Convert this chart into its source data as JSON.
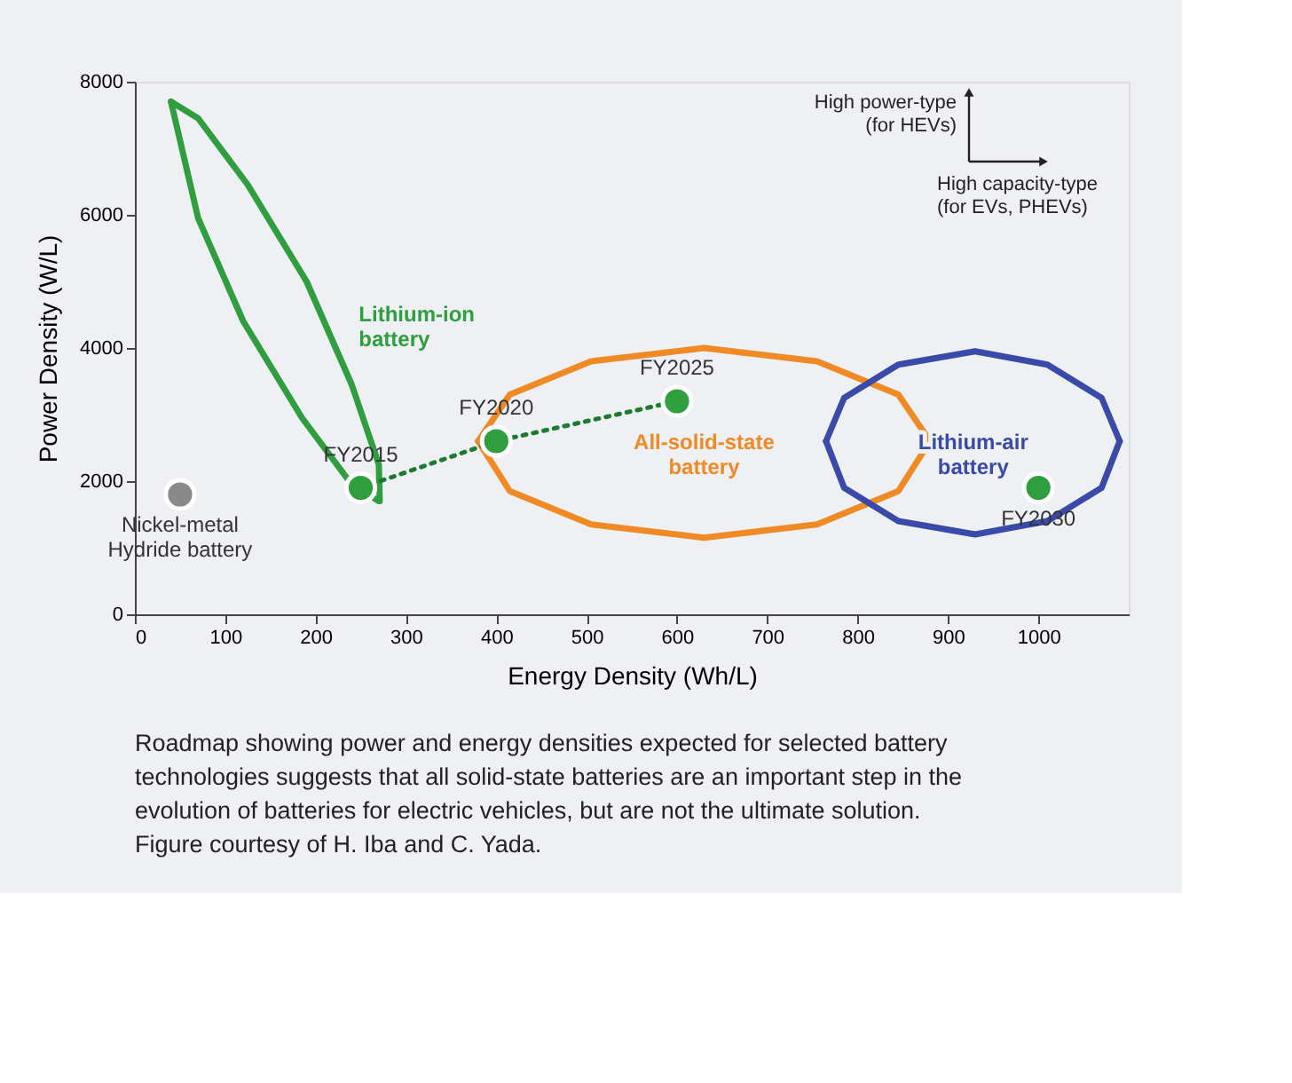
{
  "chart_data": {
    "type": "scatter",
    "xlabel": "Energy Density  (Wh/L)",
    "ylabel": "Power Density  (W/L)",
    "xlim": [
      0,
      1100
    ],
    "ylim": [
      0,
      8000
    ],
    "xticks": [
      0,
      100,
      200,
      300,
      400,
      500,
      600,
      700,
      800,
      900,
      1000
    ],
    "yticks": [
      0,
      2000,
      4000,
      6000,
      8000
    ],
    "grid": false,
    "marker": "circle",
    "series": [
      {
        "type": "line",
        "name": "Lithium-ion\nbattery",
        "marker": "none",
        "line_style": "solid",
        "color": "#2e9e3e",
        "x": [
          40,
          70,
          125,
          190,
          240,
          270,
          271
        ],
        "values": [
          7700,
          7450,
          6450,
          5000,
          3450,
          2250,
          1700
        ]
      },
      {
        "type": "line",
        "marker": "none",
        "line_style": "solid",
        "color": "#2e9e3e",
        "x": [
          40,
          70,
          120,
          185,
          240,
          270
        ],
        "values": [
          7700,
          5950,
          4400,
          2950,
          1950,
          1700
        ]
      },
      {
        "type": "line",
        "name": "All-solid-state\nbattery",
        "marker": "none",
        "line_style": "solid",
        "color": "#f08a24",
        "x": [
          380,
          415,
          505,
          630,
          755,
          845,
          880
        ],
        "values": [
          2600,
          3300,
          3800,
          4000,
          3800,
          3300,
          2600
        ]
      },
      {
        "type": "line",
        "marker": "none",
        "line_style": "solid",
        "color": "#f08a24",
        "x": [
          380,
          415,
          505,
          630,
          755,
          845,
          880
        ],
        "values": [
          2600,
          1850,
          1350,
          1150,
          1350,
          1850,
          2600
        ]
      },
      {
        "type": "line",
        "name": "Lithium-air\nbattery",
        "marker": "none",
        "line_style": "solid",
        "color": "#3a4aa8",
        "x": [
          765,
          785,
          845,
          930,
          1010,
          1070,
          1090
        ],
        "values": [
          2600,
          3250,
          3750,
          3950,
          3750,
          3250,
          2600
        ]
      },
      {
        "type": "line",
        "marker": "none",
        "line_style": "solid",
        "color": "#3a4aa8",
        "x": [
          765,
          785,
          845,
          930,
          1010,
          1070,
          1090
        ],
        "values": [
          2600,
          1900,
          1400,
          1200,
          1400,
          1900,
          2600
        ]
      },
      {
        "type": "line",
        "marker": "none",
        "line_style": "dotted",
        "color": "#1e7a2e",
        "x": [
          250,
          400,
          600
        ],
        "values": [
          1900,
          2600,
          3200
        ]
      },
      {
        "name": "Nickel-metal\nHydride battery",
        "color": "#8a8a8a",
        "x": [
          50
        ],
        "values": [
          1800
        ]
      },
      {
        "name": "FY2015",
        "color": "#2e9e3e",
        "x": [
          250
        ],
        "values": [
          1900
        ]
      },
      {
        "name": "FY2020",
        "color": "#2e9e3e",
        "x": [
          400
        ],
        "values": [
          2600
        ]
      },
      {
        "name": "FY2025",
        "color": "#2e9e3e",
        "x": [
          600
        ],
        "values": [
          3200
        ]
      },
      {
        "name": "FY2030",
        "color": "#2e9e3e",
        "x": [
          1000
        ],
        "values": [
          1900
        ]
      }
    ],
    "annotations": [
      "High power-type\n(for HEVs)",
      "High capacity-type\n(for EVs, PHEVs)",
      "Roadmap showing power and energy densities expected for selected battery technologies suggests that all solid-state batteries are an important step in the evolution of batteries for electric vehicles, but are not the ultimate solution. Figure courtesy of H. Iba and C. Yada."
    ]
  }
}
